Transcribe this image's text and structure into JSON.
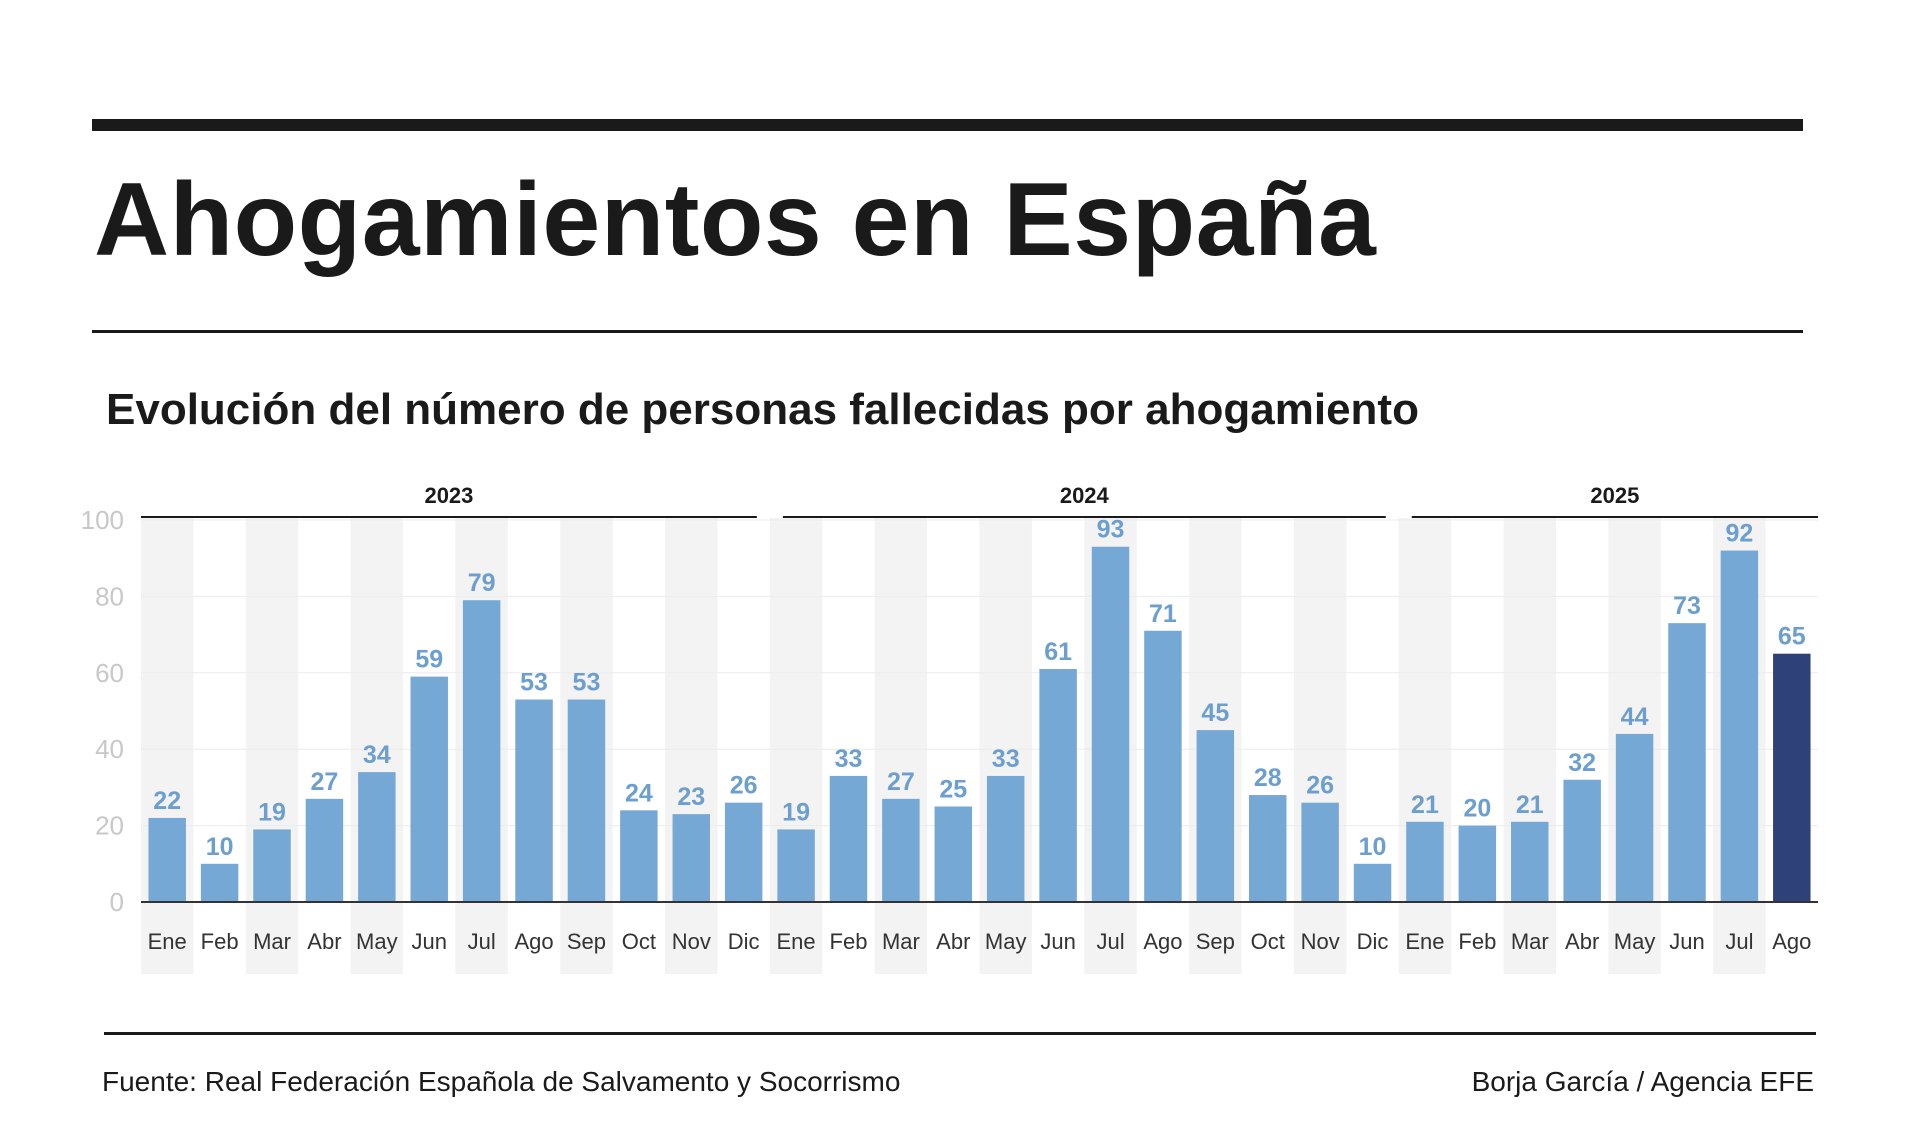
{
  "title": "Ahogamientos en España",
  "subtitle": "Evolución del número de personas fallecidas por ahogamiento",
  "source": "Fuente: Real Federación Española de Salvamento y Socorrismo",
  "credit": "Borja García / Agencia EFE",
  "colors": {
    "bar": "#76a8d6",
    "bar_highlight": "#2e4279",
    "value_label": "#6c9fd0",
    "axis_tick": "#c8c8c8",
    "stripe": "#f3f3f3",
    "text": "#1a1a1a"
  },
  "chart_data": {
    "type": "bar",
    "title": "Evolución del número de personas fallecidas por ahogamiento",
    "xlabel": "",
    "ylabel": "",
    "ylim": [
      0,
      100
    ],
    "yticks": [
      0,
      20,
      40,
      60,
      80,
      100
    ],
    "grid": true,
    "years": [
      {
        "label": "2023",
        "months": [
          "Ene",
          "Feb",
          "Mar",
          "Abr",
          "May",
          "Jun",
          "Jul",
          "Ago",
          "Sep",
          "Oct",
          "Nov",
          "Dic"
        ],
        "values": [
          22,
          10,
          19,
          27,
          34,
          59,
          79,
          53,
          53,
          24,
          23,
          26
        ]
      },
      {
        "label": "2024",
        "months": [
          "Ene",
          "Feb",
          "Mar",
          "Abr",
          "May",
          "Jun",
          "Jul",
          "Ago",
          "Sep",
          "Oct",
          "Nov",
          "Dic"
        ],
        "values": [
          19,
          33,
          27,
          25,
          33,
          61,
          93,
          71,
          45,
          28,
          26,
          10
        ]
      },
      {
        "label": "2025",
        "months": [
          "Ene",
          "Feb",
          "Mar",
          "Abr",
          "May",
          "Jun",
          "Jul",
          "Ago"
        ],
        "values": [
          21,
          20,
          21,
          32,
          44,
          73,
          92,
          65
        ]
      }
    ],
    "highlight": {
      "year": "2025",
      "month": "Ago"
    }
  }
}
